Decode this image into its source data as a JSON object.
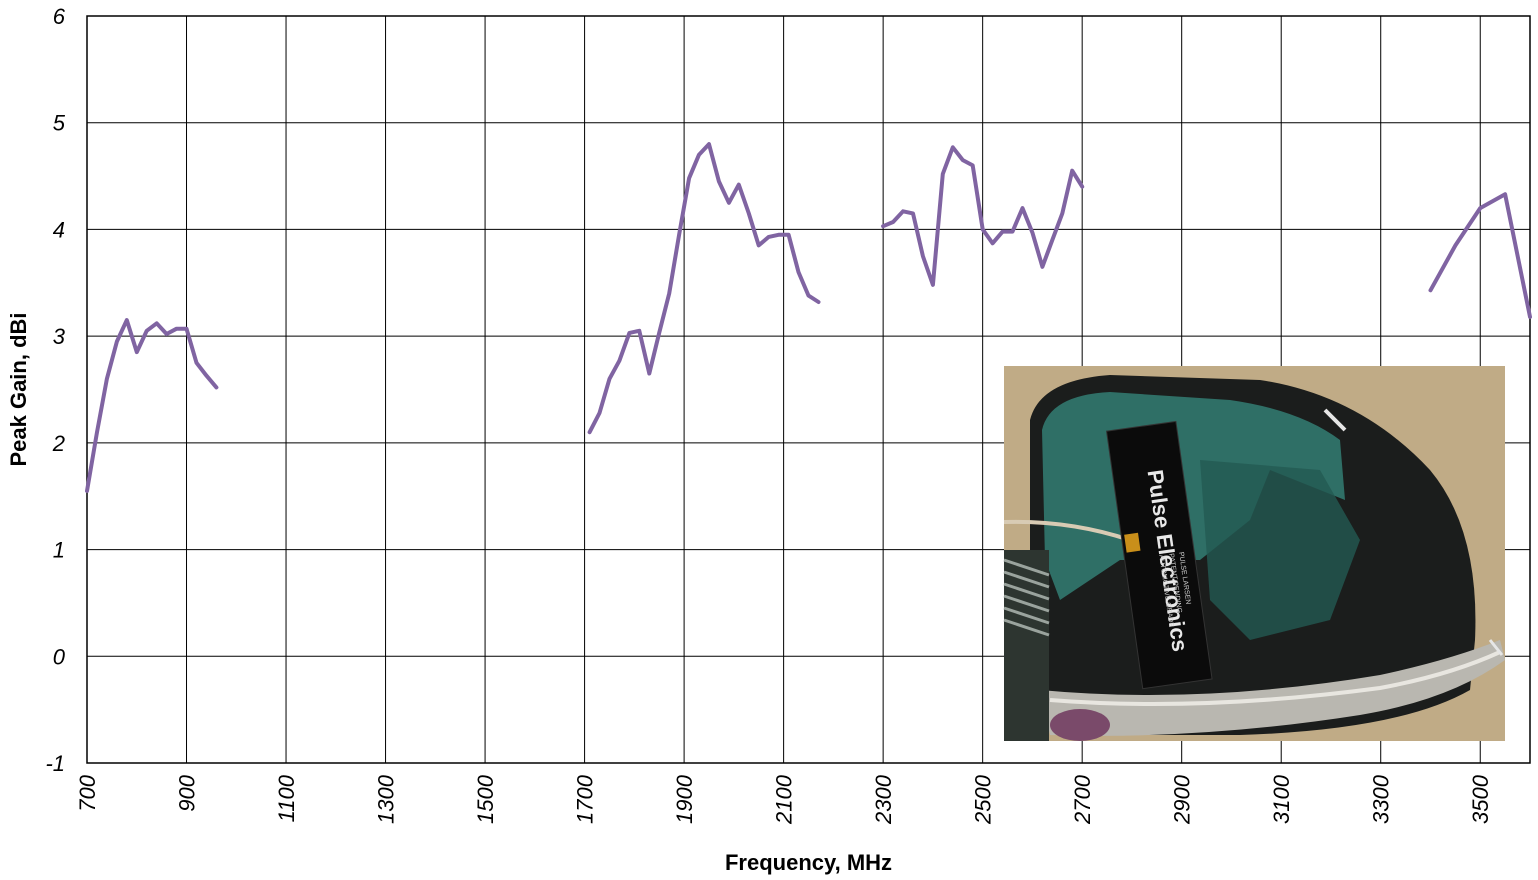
{
  "chart_data": {
    "type": "line",
    "xlabel": "Frequency, MHz",
    "ylabel": "Peak Gain, dBi",
    "xlim": [
      700,
      3600
    ],
    "ylim": [
      -1,
      6
    ],
    "x_ticks": [
      700,
      900,
      1100,
      1300,
      1500,
      1700,
      1900,
      2100,
      2300,
      2500,
      2700,
      2900,
      3100,
      3300,
      3500
    ],
    "x_tick_labels": [
      "700",
      "900",
      "1100",
      "1300",
      "1500",
      "1700",
      "1900",
      "2100",
      "2300",
      "2500",
      "2700",
      "2900",
      "3100",
      "3300",
      "3500"
    ],
    "y_ticks": [
      -1,
      0,
      1,
      2,
      3,
      4,
      5,
      6
    ],
    "y_tick_labels": [
      "-1",
      "0",
      "1",
      "2",
      "3",
      "4",
      "5",
      "6"
    ],
    "grid": true,
    "line_color": "#8064a2",
    "inset_image": "photo of Pulse Electronics antenna mounted inside vehicle side mirror housing",
    "inset_label": "Pulse Electronics",
    "series": [
      {
        "segments": [
          {
            "x": [
              700,
              720,
              740,
              760,
              780,
              800,
              820,
              840,
              860,
              880,
              900,
              920,
              940,
              960
            ],
            "y": [
              1.55,
              2.1,
              2.6,
              2.95,
              3.15,
              2.85,
              3.05,
              3.12,
              3.02,
              3.07,
              3.07,
              2.75,
              2.63,
              2.52
            ]
          },
          {
            "x": [
              1710,
              1730,
              1750,
              1770,
              1790,
              1810,
              1830,
              1850,
              1870,
              1890,
              1910,
              1930,
              1950,
              1970,
              1990,
              2010,
              2030,
              2050,
              2070,
              2090,
              2110,
              2130,
              2150,
              2170
            ],
            "y": [
              2.1,
              2.28,
              2.6,
              2.77,
              3.03,
              3.05,
              2.65,
              3.03,
              3.4,
              3.95,
              4.48,
              4.7,
              4.8,
              4.45,
              4.25,
              4.42,
              4.15,
              3.85,
              3.93,
              3.95,
              3.95,
              3.6,
              3.38,
              3.32
            ]
          },
          {
            "x": [
              2300,
              2320,
              2340,
              2360,
              2380,
              2400,
              2420,
              2440,
              2460,
              2480,
              2500,
              2520,
              2540,
              2560,
              2580,
              2600,
              2620,
              2640,
              2660,
              2680,
              2700
            ],
            "y": [
              4.03,
              4.07,
              4.17,
              4.15,
              3.75,
              3.48,
              4.52,
              4.77,
              4.65,
              4.6,
              4.0,
              3.87,
              3.98,
              3.98,
              4.2,
              3.97,
              3.65,
              3.9,
              4.15,
              4.55,
              4.4
            ]
          },
          {
            "x": [
              3400,
              3450,
              3500,
              3550,
              3600
            ],
            "y": [
              3.43,
              3.85,
              4.2,
              4.33,
              3.18
            ]
          }
        ]
      }
    ]
  }
}
